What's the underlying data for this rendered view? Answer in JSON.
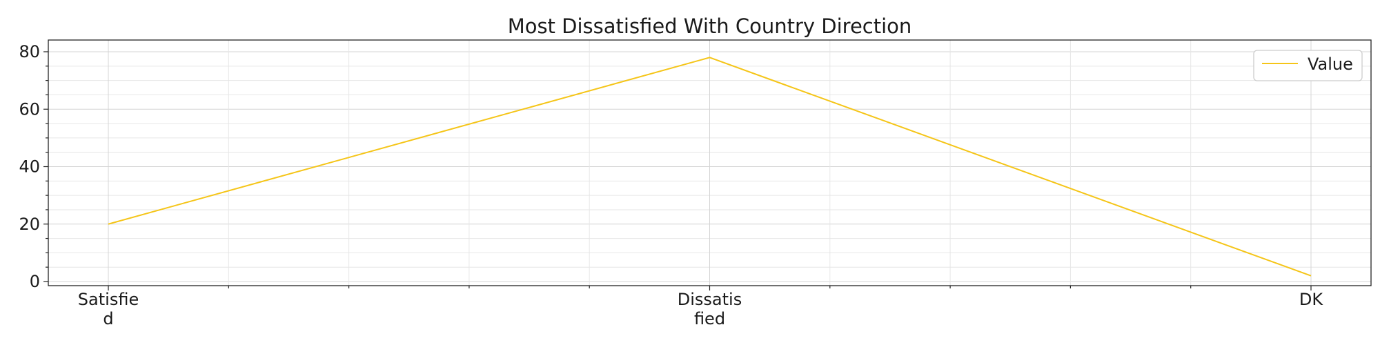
{
  "chart_data": {
    "type": "line",
    "title": "Most Dissatisfied With Country Direction",
    "categories": [
      "Satisfied",
      "Dissatisfied",
      "DK"
    ],
    "category_tick_lines": [
      [
        "Satisfie",
        "d"
      ],
      [
        "Dissatis",
        "fied"
      ],
      [
        "DK"
      ]
    ],
    "series": [
      {
        "name": "Value",
        "color": "#f5c518",
        "values": [
          20,
          78,
          2
        ]
      }
    ],
    "xlabel": "",
    "ylabel": "",
    "ylim": [
      0,
      80
    ],
    "y_ticks": [
      0,
      20,
      40,
      60,
      80
    ],
    "grid": true,
    "legend_position": "top-right"
  }
}
